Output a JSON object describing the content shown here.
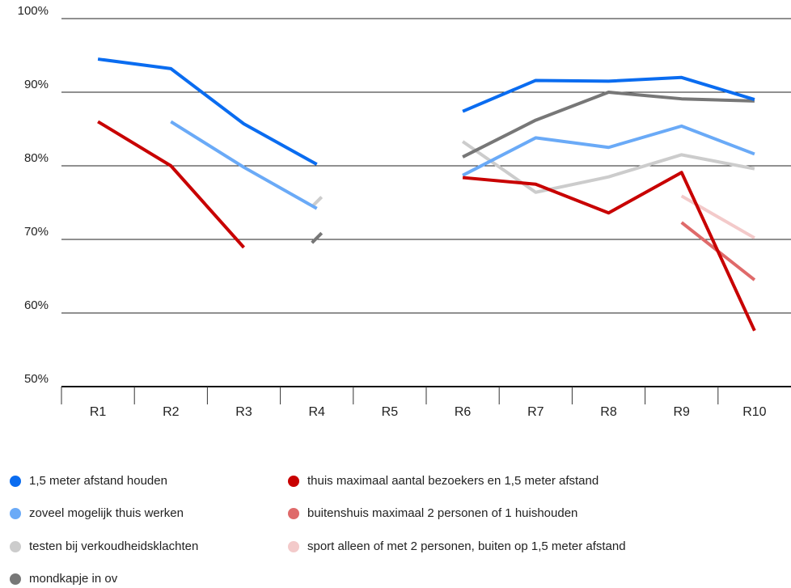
{
  "chart_data": {
    "type": "line",
    "title": "",
    "xlabel": "",
    "ylabel": "",
    "categories": [
      "R1",
      "R2",
      "R3",
      "R4",
      "R5",
      "R6",
      "R7",
      "R8",
      "R9",
      "R10"
    ],
    "y_ticks": [
      "50%",
      "60%",
      "70%",
      "80%",
      "90%",
      "100%"
    ],
    "ylim": [
      50,
      100
    ],
    "grid": "horizontal",
    "legend_position": "bottom",
    "series": [
      {
        "name": "1,5 meter afstand houden",
        "color": "#0A6CF0",
        "values": [
          94.5,
          93.2,
          85.7,
          80.2,
          null,
          87.4,
          91.6,
          91.5,
          92.0,
          89.0
        ]
      },
      {
        "name": "zoveel mogelijk thuis werken",
        "color": "#6AAAF7",
        "values": [
          null,
          86.0,
          79.8,
          74.2,
          null,
          78.7,
          83.8,
          82.5,
          85.4,
          81.6
        ]
      },
      {
        "name": "testen bij verkoudheidsklachten",
        "color": "#CCCCCC",
        "values": [
          null,
          null,
          null,
          75.1,
          null,
          83.3,
          76.4,
          78.5,
          81.5,
          79.6
        ]
      },
      {
        "name": "mondkapje in ov",
        "color": "#777777",
        "values": [
          null,
          null,
          null,
          70.2,
          null,
          81.2,
          86.2,
          90.0,
          89.1,
          88.8
        ]
      },
      {
        "name": "thuis maximaal aantal bezoekers en 1,5 meter afstand",
        "color": "#C80000",
        "values": [
          86.0,
          80.0,
          68.9,
          null,
          null,
          78.4,
          77.5,
          73.6,
          79.1,
          57.6
        ]
      },
      {
        "name": "buitenshuis maximaal 2 personen of 1 huishouden",
        "color": "#DF6A6A",
        "values": [
          null,
          null,
          null,
          null,
          null,
          null,
          null,
          null,
          72.3,
          64.5
        ]
      },
      {
        "name": "sport alleen of met 2 personen, buiten op 1,5 meter afstand",
        "color": "#F3CACA",
        "values": [
          null,
          null,
          null,
          null,
          null,
          null,
          null,
          null,
          75.9,
          70.2
        ]
      }
    ]
  }
}
